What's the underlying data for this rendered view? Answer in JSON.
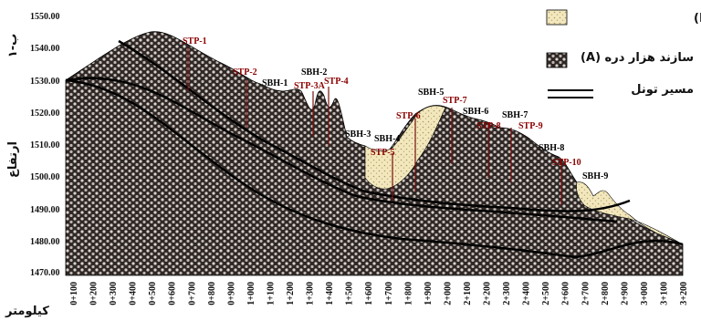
{
  "section_label": "ب-١",
  "y_axis_label": "ارتفاع",
  "x_axis_label": "کیلومتر",
  "y_ticks": [
    "1550.00",
    "1540.00",
    "1530.00",
    "1520.00",
    "1510.00",
    "1500.00",
    "1490.00",
    "1480.00",
    "1470.00"
  ],
  "x_ticks": [
    "0+100",
    "0+200",
    "0+300",
    "0+400",
    "0+500",
    "0+600",
    "0+700",
    "0+800",
    "0+900",
    "1+000",
    "1+100",
    "1+200",
    "1+300",
    "1+400",
    "1+500",
    "1+600",
    "1+700",
    "1+800",
    "1+900",
    "2+000",
    "2+100",
    "2+200",
    "2+300",
    "2+400",
    "2+500",
    "2+600",
    "2+700",
    "2+800",
    "2+900",
    "3+000",
    "3+100",
    "3+200"
  ],
  "legend": {
    "bn_label": "سازند کهریزک (Bn)",
    "a_label": "سازند هزار دره (A)",
    "tunnel_label": "مسیر تونل"
  },
  "stp_labels": [
    "STP-1",
    "STP-2",
    "STP-3A",
    "STP-4",
    "STP-5",
    "STP-6",
    "STP-7",
    "STP-8",
    "STP-9",
    "STP-10"
  ],
  "sbh_labels": [
    "SBH-1",
    "SBH-2",
    "SBH-3",
    "SBH-4",
    "SBH-5",
    "SBH-6",
    "SBH-7",
    "SBH-8",
    "SBH-9"
  ],
  "colors": {
    "formation_a": "#3a3230",
    "formation_bn": "#efe3b4",
    "tunnel": "#000000",
    "stp_text": "#8b0000"
  }
}
